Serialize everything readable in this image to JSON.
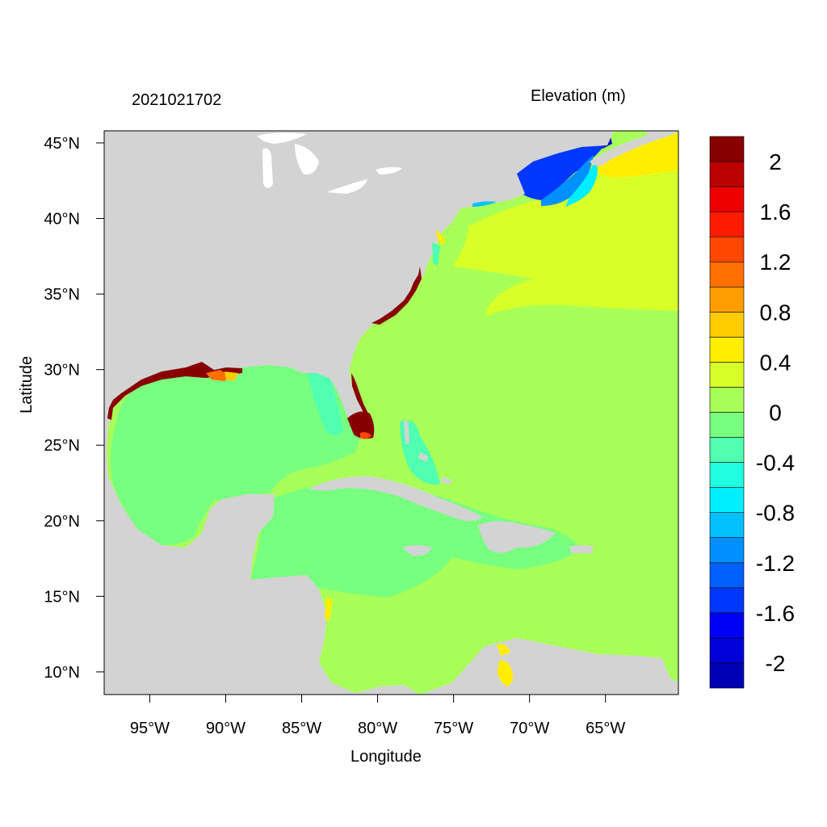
{
  "figure": {
    "left_title": "2021021702",
    "right_title": "Elevation (m)",
    "xlabel": "Longitude",
    "ylabel": "Latitude"
  },
  "chart_data": {
    "type": "heatmap",
    "title_left": "2021021702",
    "title_right": "Elevation (m)",
    "xlabel": "Longitude",
    "ylabel": "Latitude",
    "xlim": [
      -98,
      -60.2
    ],
    "ylim": [
      8.5,
      45.8
    ],
    "x_ticks": [
      {
        "value": -95,
        "label": "95°W"
      },
      {
        "value": -90,
        "label": "90°W"
      },
      {
        "value": -85,
        "label": "85°W"
      },
      {
        "value": -80,
        "label": "80°W"
      },
      {
        "value": -75,
        "label": "75°W"
      },
      {
        "value": -70,
        "label": "70°W"
      },
      {
        "value": -65,
        "label": "65°W"
      }
    ],
    "y_ticks": [
      {
        "value": 45,
        "label": "45°N"
      },
      {
        "value": 40,
        "label": "40°N"
      },
      {
        "value": 35,
        "label": "35°N"
      },
      {
        "value": 30,
        "label": "30°N"
      },
      {
        "value": 25,
        "label": "25°N"
      },
      {
        "value": 20,
        "label": "20°N"
      },
      {
        "value": 15,
        "label": "15°N"
      },
      {
        "value": 10,
        "label": "10°N"
      }
    ],
    "colorbar": {
      "levels": [
        -2.2,
        -2.0,
        -1.8,
        -1.6,
        -1.4,
        -1.2,
        -1.0,
        -0.8,
        -0.6,
        -0.4,
        -0.2,
        0.0,
        0.2,
        0.4,
        0.6,
        0.8,
        1.0,
        1.2,
        1.4,
        1.6,
        1.8,
        2.0,
        2.2
      ],
      "colors": [
        "#0000b4",
        "#0000d8",
        "#0000f8",
        "#0038ff",
        "#0060ff",
        "#0090ff",
        "#00c0ff",
        "#00eeff",
        "#22ffe0",
        "#50ffb0",
        "#78ff80",
        "#a8ff58",
        "#d8ff28",
        "#ffee00",
        "#ffcc00",
        "#ff9c00",
        "#ff7000",
        "#ff4800",
        "#ff1c00",
        "#ee0000",
        "#bb0000",
        "#880000"
      ],
      "labels": [
        {
          "value": -2.0,
          "text": "-2"
        },
        {
          "value": -1.6,
          "text": "-1.6"
        },
        {
          "value": -1.2,
          "text": "-1.2"
        },
        {
          "value": -0.8,
          "text": "-0.8"
        },
        {
          "value": -0.4,
          "text": "-0.4"
        },
        {
          "value": 0.0,
          "text": "0"
        },
        {
          "value": 0.4,
          "text": "0.4"
        },
        {
          "value": 0.8,
          "text": "0.8"
        },
        {
          "value": 1.2,
          "text": "1.2"
        },
        {
          "value": 1.6,
          "text": "1.6"
        },
        {
          "value": 2.0,
          "text": "2"
        }
      ]
    },
    "colors": {
      "land": "#d3d3d3",
      "ocean_background": "#a8ff58",
      "gulf_caribbean": "#78ff80",
      "northeast_atlantic": "#d8ff28",
      "gulf_of_maine_low": "#0038ff"
    }
  }
}
